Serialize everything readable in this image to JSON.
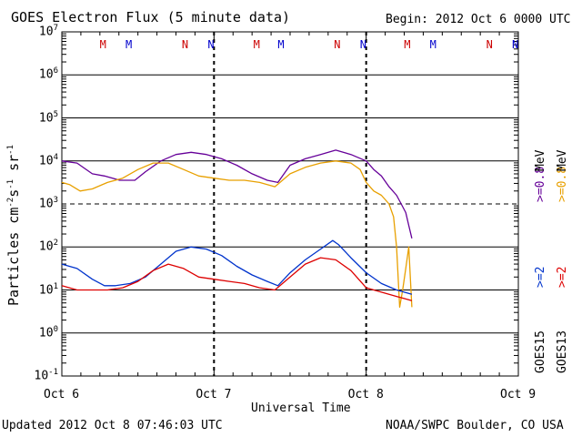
{
  "chart_data": {
    "type": "line",
    "title": "GOES Electron Flux (5 minute data)",
    "begin_label": "Begin: 2012 Oct 6 0000 UTC",
    "xlabel": "Universal Time",
    "ylabel_base": "Particles cm",
    "ylabel_sup1": "-2",
    "ylabel_mid1": "s",
    "ylabel_sup2": "-1",
    "ylabel_mid2": "sr",
    "ylabel_sup3": "-1",
    "x_ticks": [
      "Oct 6",
      "Oct 7",
      "Oct 8",
      "Oct 9"
    ],
    "x_range_days": [
      0,
      3
    ],
    "y_range_log10": [
      -1,
      7
    ],
    "y_ticks": [
      {
        "base": "10",
        "exp": "7"
      },
      {
        "base": "10",
        "exp": "6"
      },
      {
        "base": "10",
        "exp": "5"
      },
      {
        "base": "10",
        "exp": "4"
      },
      {
        "base": "10",
        "exp": "3"
      },
      {
        "base": "10",
        "exp": "2"
      },
      {
        "base": "10",
        "exp": "1"
      },
      {
        "base": "10",
        "exp": "0"
      },
      {
        "base": "10",
        "exp": "-1"
      }
    ],
    "threshold_log10": 3,
    "markers": [
      {
        "label": "M",
        "day": 0.27,
        "color": "#cc0000"
      },
      {
        "label": "M",
        "day": 0.44,
        "color": "#0000cc"
      },
      {
        "label": "N",
        "day": 0.81,
        "color": "#cc0000"
      },
      {
        "label": "N",
        "day": 0.98,
        "color": "#0000cc"
      },
      {
        "label": "M",
        "day": 1.28,
        "color": "#cc0000"
      },
      {
        "label": "M",
        "day": 1.44,
        "color": "#0000cc"
      },
      {
        "label": "N",
        "day": 1.81,
        "color": "#cc0000"
      },
      {
        "label": "N",
        "day": 1.98,
        "color": "#0000cc"
      },
      {
        "label": "M",
        "day": 2.27,
        "color": "#cc0000"
      },
      {
        "label": "M",
        "day": 2.44,
        "color": "#0000cc"
      },
      {
        "label": "N",
        "day": 2.81,
        "color": "#cc0000"
      },
      {
        "label": "N",
        "day": 2.98,
        "color": "#0000cc"
      }
    ],
    "series": [
      {
        "name": "GOES15 >=0.8 MeV",
        "color": "#660099",
        "x": [
          0,
          0.1,
          0.2,
          0.28,
          0.38,
          0.48,
          0.55,
          0.65,
          0.75,
          0.85,
          0.95,
          1.05,
          1.15,
          1.25,
          1.35,
          1.42,
          1.5,
          1.6,
          1.7,
          1.8,
          1.9,
          2.0,
          2.05,
          2.1,
          2.15,
          2.2,
          2.23,
          2.26,
          2.28,
          2.3
        ],
        "y": [
          4.0,
          3.95,
          3.7,
          3.65,
          3.55,
          3.55,
          3.75,
          4.0,
          4.15,
          4.2,
          4.15,
          4.05,
          3.9,
          3.7,
          3.55,
          3.5,
          3.9,
          4.05,
          4.15,
          4.25,
          4.15,
          4.0,
          3.8,
          3.65,
          3.4,
          3.2,
          3.0,
          2.8,
          2.5,
          2.2
        ]
      },
      {
        "name": "GOES13 >=0.8 MeV",
        "color": "#e8a000",
        "x": [
          0,
          0.05,
          0.12,
          0.2,
          0.3,
          0.4,
          0.5,
          0.6,
          0.7,
          0.8,
          0.9,
          1.0,
          1.1,
          1.2,
          1.3,
          1.4,
          1.5,
          1.6,
          1.7,
          1.8,
          1.9,
          1.96,
          2.0,
          2.05,
          2.1,
          2.15,
          2.18,
          2.2,
          2.22,
          2.24,
          2.26,
          2.28,
          2.3
        ],
        "y": [
          3.5,
          3.45,
          3.3,
          3.35,
          3.5,
          3.6,
          3.8,
          3.95,
          3.95,
          3.8,
          3.65,
          3.6,
          3.55,
          3.55,
          3.5,
          3.4,
          3.7,
          3.85,
          3.95,
          4.0,
          3.95,
          3.8,
          3.5,
          3.3,
          3.2,
          3.0,
          2.7,
          2.0,
          0.6,
          1.0,
          1.5,
          2.0,
          0.6
        ]
      },
      {
        "name": "GOES15 >=2 MeV",
        "color": "#0033cc",
        "x": [
          0,
          0.1,
          0.2,
          0.28,
          0.35,
          0.45,
          0.55,
          0.65,
          0.75,
          0.85,
          0.95,
          1.05,
          1.15,
          1.25,
          1.35,
          1.42,
          1.5,
          1.6,
          1.7,
          1.78,
          1.82,
          1.9,
          2.0,
          2.1,
          2.2,
          2.25,
          2.3
        ],
        "y": [
          1.6,
          1.5,
          1.25,
          1.1,
          1.1,
          1.15,
          1.3,
          1.6,
          1.9,
          2.0,
          1.95,
          1.8,
          1.55,
          1.35,
          1.2,
          1.1,
          1.4,
          1.7,
          1.95,
          2.15,
          2.05,
          1.75,
          1.4,
          1.15,
          1.0,
          0.95,
          0.9
        ]
      },
      {
        "name": "GOES13 >=2 MeV",
        "color": "#dd0000",
        "x": [
          0,
          0.1,
          0.2,
          0.3,
          0.4,
          0.5,
          0.6,
          0.7,
          0.8,
          0.9,
          1.0,
          1.1,
          1.2,
          1.3,
          1.4,
          1.5,
          1.6,
          1.7,
          1.8,
          1.9,
          2.0,
          2.1,
          2.2,
          2.25,
          2.3
        ],
        "y": [
          1.1,
          1.0,
          1.0,
          1.0,
          1.05,
          1.2,
          1.45,
          1.6,
          1.5,
          1.3,
          1.25,
          1.2,
          1.15,
          1.05,
          1.0,
          1.3,
          1.6,
          1.75,
          1.7,
          1.45,
          1.05,
          0.95,
          0.85,
          0.8,
          0.75
        ]
      }
    ],
    "legend_position": "right",
    "legend": {
      "goes15_label": "GOES15",
      "goes13_label": "GOES13",
      "g15_low": ">=2",
      "g15_high": ">=0.8",
      "g13_low": ">=2",
      "g13_high": ">=0.8",
      "unit": "MeV"
    }
  },
  "footer": {
    "updated": "Updated 2012 Oct  8 07:46:03 UTC",
    "source": "NOAA/SWPC Boulder, CO USA"
  },
  "colors": {
    "goes15_high": "#660099",
    "goes13_high": "#e8a000",
    "goes15_low": "#0033cc",
    "goes13_low": "#dd0000"
  }
}
